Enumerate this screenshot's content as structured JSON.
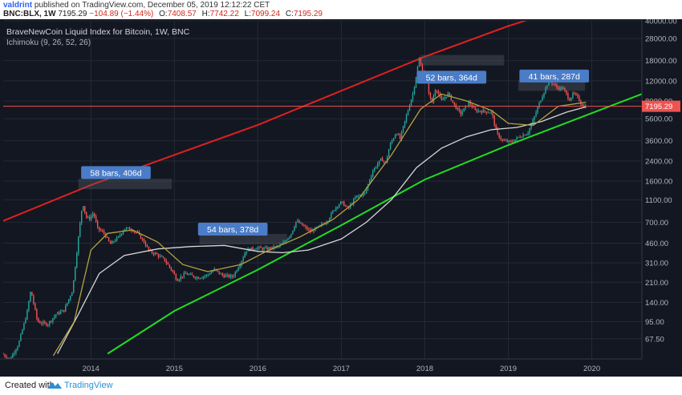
{
  "header": {
    "author": "valdrint",
    "published_text": "published on TradingView.com, December 05, 2019 12:12:22 CET",
    "symbol": "BNC:BLX, 1W",
    "price": "7195.29",
    "change": "−104.89 (−1.44%)",
    "o_label": "O:",
    "o_value": "7408.57",
    "h_label": "H:",
    "h_value": "7742.22",
    "l_label": "L:",
    "l_value": "7099.24",
    "c_label": "C:",
    "c_value": "7195.29"
  },
  "footer": {
    "created": "Created with",
    "brand": "TradingView"
  },
  "chart_data": {
    "type": "candlestick",
    "title": "BraveNewCoin Liquid Index for Bitcoin, 1W, BNC",
    "indicator": "Ichimoku (9, 26, 52, 26)",
    "scale": "log",
    "x_range": [
      2012.95,
      2020.6
    ],
    "y_range": [
      45,
      40000
    ],
    "x_ticks": [
      2014,
      2015,
      2016,
      2017,
      2018,
      2019,
      2020
    ],
    "x_tick_labels": [
      "2014",
      "2015",
      "2016",
      "2017",
      "2018",
      "2019",
      "2020"
    ],
    "y_ticks": [
      67.5,
      95,
      140,
      210,
      310,
      460,
      700,
      1100,
      1600,
      2400,
      3600,
      5600,
      8000,
      12000,
      18000,
      28000,
      40000
    ],
    "y_tick_labels": [
      "67.50",
      "95.00",
      "140.00",
      "210.00",
      "310.00",
      "460.00",
      "700.00",
      "1100.00",
      "1600.00",
      "2400.00",
      "3600.00",
      "5600.00",
      "8000.00",
      "12000.00",
      "18000.00",
      "28000.00",
      "40000.00"
    ],
    "last_price": 7195.29,
    "last_price_label": "7195.29",
    "price_path": [
      [
        2012.95,
        50
      ],
      [
        2013.05,
        45
      ],
      [
        2013.15,
        60
      ],
      [
        2013.25,
        110
      ],
      [
        2013.3,
        180
      ],
      [
        2013.38,
        95
      ],
      [
        2013.5,
        90
      ],
      [
        2013.6,
        110
      ],
      [
        2013.7,
        120
      ],
      [
        2013.8,
        180
      ],
      [
        2013.88,
        600
      ],
      [
        2013.92,
        1050
      ],
      [
        2013.96,
        780
      ],
      [
        2014.0,
        750
      ],
      [
        2014.05,
        850
      ],
      [
        2014.1,
        620
      ],
      [
        2014.18,
        560
      ],
      [
        2014.25,
        450
      ],
      [
        2014.35,
        520
      ],
      [
        2014.42,
        620
      ],
      [
        2014.5,
        610
      ],
      [
        2014.58,
        560
      ],
      [
        2014.65,
        480
      ],
      [
        2014.72,
        390
      ],
      [
        2014.8,
        370
      ],
      [
        2014.9,
        330
      ],
      [
        2015.0,
        260
      ],
      [
        2015.05,
        220
      ],
      [
        2015.15,
        250
      ],
      [
        2015.3,
        230
      ],
      [
        2015.4,
        240
      ],
      [
        2015.5,
        270
      ],
      [
        2015.6,
        240
      ],
      [
        2015.72,
        235
      ],
      [
        2015.82,
        320
      ],
      [
        2015.88,
        400
      ],
      [
        2016.0,
        420
      ],
      [
        2016.1,
        410
      ],
      [
        2016.2,
        420
      ],
      [
        2016.3,
        440
      ],
      [
        2016.42,
        560
      ],
      [
        2016.48,
        720
      ],
      [
        2016.55,
        660
      ],
      [
        2016.65,
        580
      ],
      [
        2016.75,
        640
      ],
      [
        2016.85,
        720
      ],
      [
        2016.95,
        950
      ],
      [
        2017.02,
        1050
      ],
      [
        2017.1,
        920
      ],
      [
        2017.2,
        1180
      ],
      [
        2017.3,
        1250
      ],
      [
        2017.4,
        2000
      ],
      [
        2017.5,
        2500
      ],
      [
        2017.55,
        2300
      ],
      [
        2017.6,
        3300
      ],
      [
        2017.68,
        4300
      ],
      [
        2017.72,
        3700
      ],
      [
        2017.8,
        6000
      ],
      [
        2017.88,
        9500
      ],
      [
        2017.95,
        18500
      ],
      [
        2018.0,
        14000
      ],
      [
        2018.05,
        11000
      ],
      [
        2018.1,
        7500
      ],
      [
        2018.15,
        10500
      ],
      [
        2018.22,
        8000
      ],
      [
        2018.3,
        9300
      ],
      [
        2018.38,
        7200
      ],
      [
        2018.45,
        6200
      ],
      [
        2018.55,
        7800
      ],
      [
        2018.62,
        6600
      ],
      [
        2018.72,
        6500
      ],
      [
        2018.82,
        6400
      ],
      [
        2018.88,
        4200
      ],
      [
        2018.95,
        3600
      ],
      [
        2019.05,
        3500
      ],
      [
        2019.15,
        3900
      ],
      [
        2019.25,
        4200
      ],
      [
        2019.32,
        5500
      ],
      [
        2019.4,
        8000
      ],
      [
        2019.48,
        11000
      ],
      [
        2019.52,
        12000
      ],
      [
        2019.6,
        10500
      ],
      [
        2019.68,
        10200
      ],
      [
        2019.75,
        8200
      ],
      [
        2019.8,
        9300
      ],
      [
        2019.85,
        8600
      ],
      [
        2019.9,
        7400
      ],
      [
        2019.93,
        7195
      ]
    ],
    "trendlines": [
      {
        "color": "#e02020",
        "points": [
          [
            2012.95,
            720
          ],
          [
            2014.0,
            1480
          ],
          [
            2016.0,
            4950
          ],
          [
            2018.0,
            19500
          ],
          [
            2019.0,
            36000
          ],
          [
            2019.5,
            47000
          ]
        ]
      },
      {
        "color": "#22dd22",
        "points": [
          [
            2014.2,
            50
          ],
          [
            2015.0,
            118
          ],
          [
            2016.0,
            270
          ],
          [
            2017.0,
            660
          ],
          [
            2018.0,
            1650
          ],
          [
            2019.0,
            3300
          ],
          [
            2020.6,
            9200
          ]
        ]
      }
    ],
    "moving_averages": [
      {
        "color": "#d6d6d6",
        "points": [
          [
            2013.6,
            50
          ],
          [
            2013.85,
            110
          ],
          [
            2014.1,
            250
          ],
          [
            2014.4,
            360
          ],
          [
            2014.8,
            410
          ],
          [
            2015.2,
            430
          ],
          [
            2015.6,
            440
          ],
          [
            2016.0,
            390
          ],
          [
            2016.3,
            380
          ],
          [
            2016.6,
            400
          ],
          [
            2017.0,
            500
          ],
          [
            2017.3,
            700
          ],
          [
            2017.6,
            1100
          ],
          [
            2017.9,
            2100
          ],
          [
            2018.2,
            3100
          ],
          [
            2018.5,
            3900
          ],
          [
            2018.8,
            4500
          ],
          [
            2019.1,
            4700
          ],
          [
            2019.4,
            5300
          ],
          [
            2019.7,
            6400
          ],
          [
            2019.93,
            7100
          ]
        ]
      },
      {
        "color": "#b5a23d",
        "points": [
          [
            2013.55,
            48
          ],
          [
            2013.8,
            95
          ],
          [
            2014.0,
            400
          ],
          [
            2014.2,
            560
          ],
          [
            2014.5,
            600
          ],
          [
            2014.8,
            470
          ],
          [
            2015.1,
            300
          ],
          [
            2015.4,
            260
          ],
          [
            2015.8,
            300
          ],
          [
            2016.1,
            390
          ],
          [
            2016.5,
            520
          ],
          [
            2016.9,
            740
          ],
          [
            2017.2,
            1100
          ],
          [
            2017.6,
            2700
          ],
          [
            2017.95,
            6800
          ],
          [
            2018.2,
            9200
          ],
          [
            2018.5,
            8000
          ],
          [
            2018.8,
            6600
          ],
          [
            2019.0,
            5100
          ],
          [
            2019.3,
            4900
          ],
          [
            2019.6,
            7200
          ],
          [
            2019.93,
            7800
          ]
        ]
      }
    ],
    "annotations": [
      {
        "text": "58 bars, 406d",
        "x": 2014.3,
        "y": 1900,
        "range_y": 1500,
        "range_x": [
          2013.85,
          2014.97
        ]
      },
      {
        "text": "54 bars, 378d",
        "x": 2015.7,
        "y": 610,
        "range_y": 495,
        "range_x": [
          2015.3,
          2016.35
        ]
      },
      {
        "text": "52 bars, 364d",
        "x": 2018.32,
        "y": 12900,
        "range_y": 18000,
        "range_x": [
          2017.95,
          2018.95
        ]
      },
      {
        "text": "41 bars, 287d",
        "x": 2019.55,
        "y": 13200,
        "range_y": 10800,
        "range_x": [
          2019.12,
          2019.92
        ]
      }
    ],
    "colors": {
      "background": "#131722",
      "up": "#26a69a",
      "down": "#ef5350",
      "grid": "#242935",
      "axis_text": "#b2b5be",
      "price_line": "#ef5350"
    }
  }
}
